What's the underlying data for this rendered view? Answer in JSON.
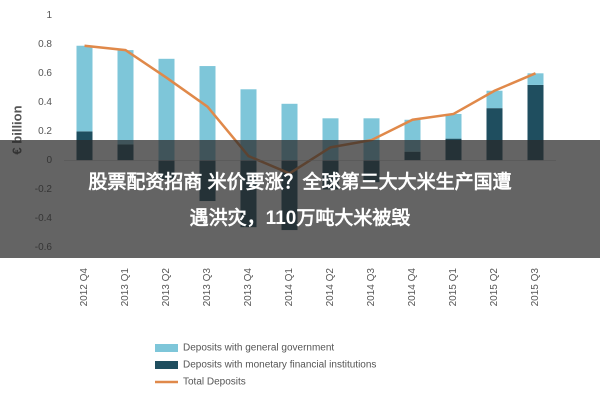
{
  "chart_data": {
    "type": "bar",
    "y_label": "€ billion",
    "categories": [
      "2012 Q4",
      "2013 Q1",
      "2013 Q2",
      "2013 Q3",
      "2013 Q4",
      "2014 Q1",
      "2014 Q2",
      "2014 Q3",
      "2014 Q4",
      "2015 Q1",
      "2015 Q2",
      "2015 Q3"
    ],
    "series": [
      {
        "name": "Deposits with general government",
        "color": "#7ec6d9",
        "kind": "bar",
        "values": [
          0.59,
          0.65,
          0.7,
          0.65,
          0.49,
          0.39,
          0.29,
          0.29,
          0.22,
          0.17,
          0.12,
          0.08
        ]
      },
      {
        "name": "Deposits with monetary financial institutions",
        "color": "#1f4e5f",
        "kind": "bar",
        "values": [
          0.2,
          0.11,
          -0.13,
          -0.28,
          -0.46,
          -0.48,
          -0.2,
          -0.15,
          0.06,
          0.15,
          0.36,
          0.52
        ]
      },
      {
        "name": "Total Deposits",
        "color": "#e0894a",
        "kind": "line",
        "values": [
          0.79,
          0.76,
          0.57,
          0.37,
          0.03,
          -0.09,
          0.09,
          0.14,
          0.28,
          0.32,
          0.48,
          0.6
        ]
      }
    ],
    "ylim": [
      -0.7,
      1.05
    ],
    "yticks": [
      -0.6,
      -0.4,
      -0.2,
      0,
      0.2,
      0.4,
      0.6,
      0.8,
      1
    ],
    "grid": false
  },
  "banner": {
    "lines": [
      "股票配资招商 米价要涨？全球第三大大米生产国遭",
      "遇洪灾，110万吨大米被毁"
    ]
  }
}
